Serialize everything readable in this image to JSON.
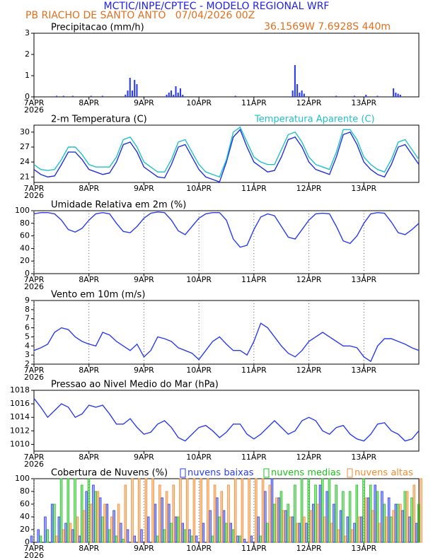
{
  "header": {
    "title": "MCTIC/INPE/CPTEC - MODELO REGIONAL WRF",
    "location": "PB RIACHO DE SANTO ANTO   07/04/2026 00Z",
    "coordinates": "36.1569W 7.6928S 440m"
  },
  "chart_data": [
    {
      "type": "bar",
      "title": "Precipitacao (mm/h)",
      "xlim": [
        0,
        168
      ],
      "x": [
        10,
        13,
        17,
        25,
        30,
        40,
        41,
        42,
        43,
        44,
        45,
        58,
        59,
        60,
        61,
        62,
        63,
        64,
        65,
        88,
        113,
        114,
        115,
        116,
        117,
        118,
        132,
        140,
        145,
        150,
        157,
        158,
        159,
        160
      ],
      "series": [
        {
          "color": "#2a3cf0",
          "values": [
            0.05,
            0.05,
            0.05,
            0.05,
            0.05,
            0.1,
            0.3,
            0.9,
            0.3,
            0.8,
            0.6,
            0.1,
            0.2,
            0.3,
            0.1,
            0.5,
            0.2,
            0.4,
            0.1,
            0.05,
            0.3,
            1.5,
            0.6,
            0.2,
            0.3,
            0.15,
            0.05,
            0.05,
            0.1,
            0.05,
            0.4,
            0.2,
            0.15,
            0.1
          ]
        }
      ],
      "ylim": [
        0,
        3
      ],
      "yticks": [
        0,
        1,
        2,
        3
      ],
      "xticks": [
        {
          "value": 0,
          "label": "7APR"
        },
        {
          "value": 24,
          "label": "8APR"
        },
        {
          "value": 48,
          "label": "9APR"
        },
        {
          "value": 72,
          "label": "10APR"
        },
        {
          "value": 96,
          "label": "11APR"
        },
        {
          "value": 120,
          "label": "12APR"
        },
        {
          "value": 144,
          "label": "13APR"
        }
      ],
      "year_label": "2026",
      "grid": false
    },
    {
      "type": "line",
      "title": "2-m Temperatura (C)",
      "xlim": [
        0,
        168
      ],
      "x": [
        0,
        3,
        6,
        9,
        12,
        15,
        18,
        21,
        24,
        27,
        30,
        33,
        36,
        39,
        42,
        45,
        48,
        51,
        54,
        57,
        60,
        63,
        66,
        69,
        72,
        75,
        78,
        81,
        84,
        87,
        90,
        93,
        96,
        99,
        102,
        105,
        108,
        111,
        114,
        117,
        120,
        123,
        126,
        129,
        132,
        135,
        138,
        141,
        144,
        147,
        150,
        153,
        156,
        159,
        162,
        165,
        168
      ],
      "series": [
        {
          "color": "#2030e0",
          "values": [
            22.5,
            21.5,
            21,
            21.2,
            23.5,
            26,
            26,
            24.5,
            22.5,
            22,
            21.5,
            21.8,
            24,
            27.5,
            28,
            26,
            23,
            22,
            21,
            20.8,
            23.5,
            27,
            27.5,
            25,
            22.5,
            21,
            20.5,
            20,
            24,
            29,
            30.5,
            27,
            24,
            23,
            22,
            22.3,
            25,
            28.5,
            29,
            27,
            24,
            22.5,
            22,
            21.5,
            25,
            29.5,
            30,
            27.5,
            24,
            22.5,
            21.5,
            21,
            23.5,
            27,
            27.5,
            25.5,
            23.5
          ]
        },
        {
          "name": "Temperatura Aparente (C)",
          "color": "#20c0c8",
          "values": [
            23.5,
            22.5,
            22.3,
            22.5,
            24.5,
            27,
            27,
            25.5,
            23.5,
            23,
            23,
            23,
            25,
            28.5,
            29,
            27,
            24,
            23,
            22,
            22,
            24.5,
            28,
            28.5,
            26,
            23.5,
            22,
            21.5,
            21,
            24.5,
            30,
            31,
            28,
            25,
            24,
            23.5,
            23.5,
            26.5,
            29.5,
            30,
            28,
            25,
            23.5,
            23,
            22.5,
            26,
            30.5,
            30.5,
            28.5,
            25,
            23.5,
            22.5,
            22,
            24.5,
            28,
            28.5,
            26.5,
            24.5
          ]
        }
      ],
      "ylim": [
        19.9,
        31.4
      ],
      "yticks": [
        21,
        24,
        27,
        30
      ],
      "xticks": [
        {
          "value": 0,
          "label": "7APR"
        },
        {
          "value": 24,
          "label": "8APR"
        },
        {
          "value": 48,
          "label": "9APR"
        },
        {
          "value": 72,
          "label": "10APR"
        },
        {
          "value": 96,
          "label": "11APR"
        },
        {
          "value": 120,
          "label": "12APR"
        },
        {
          "value": 144,
          "label": "13APR"
        }
      ],
      "year_label": "2026",
      "grid": false
    },
    {
      "type": "line",
      "title": "Umidade Relativa em 2m (%)",
      "xlim": [
        0,
        168
      ],
      "x": [
        0,
        3,
        6,
        9,
        12,
        15,
        18,
        21,
        24,
        27,
        30,
        33,
        36,
        39,
        42,
        45,
        48,
        51,
        54,
        57,
        60,
        63,
        66,
        69,
        72,
        75,
        78,
        81,
        84,
        87,
        90,
        93,
        96,
        99,
        102,
        105,
        108,
        111,
        114,
        117,
        120,
        123,
        126,
        129,
        132,
        135,
        138,
        141,
        144,
        147,
        150,
        153,
        156,
        159,
        162,
        165,
        168
      ],
      "series": [
        {
          "color": "#2a3cf0",
          "values": [
            95,
            97,
            97,
            95,
            85,
            70,
            66,
            72,
            85,
            95,
            97,
            95,
            80,
            67,
            65,
            75,
            88,
            96,
            98,
            97,
            85,
            68,
            62,
            75,
            88,
            95,
            97,
            97,
            85,
            55,
            42,
            45,
            70,
            90,
            95,
            92,
            75,
            58,
            55,
            70,
            85,
            95,
            96,
            95,
            75,
            52,
            48,
            60,
            80,
            95,
            97,
            96,
            82,
            65,
            62,
            70,
            80
          ]
        }
      ],
      "ylim": [
        0,
        100
      ],
      "yticks": [
        0,
        20,
        40,
        60,
        80,
        100
      ],
      "xticks": [
        {
          "value": 0,
          "label": "7APR"
        },
        {
          "value": 24,
          "label": "8APR"
        },
        {
          "value": 48,
          "label": "9APR"
        },
        {
          "value": 72,
          "label": "10APR"
        },
        {
          "value": 96,
          "label": "11APR"
        },
        {
          "value": 120,
          "label": "12APR"
        },
        {
          "value": 144,
          "label": "13APR"
        }
      ],
      "year_label": "2026",
      "grid": true
    },
    {
      "type": "line",
      "title": "Vento em 10m (m/s)",
      "xlim": [
        0,
        168
      ],
      "x": [
        0,
        3,
        6,
        9,
        12,
        15,
        18,
        21,
        24,
        27,
        30,
        33,
        36,
        39,
        42,
        45,
        48,
        51,
        54,
        57,
        60,
        63,
        66,
        69,
        72,
        75,
        78,
        81,
        84,
        87,
        90,
        93,
        96,
        99,
        102,
        105,
        108,
        111,
        114,
        117,
        120,
        123,
        126,
        129,
        132,
        135,
        138,
        141,
        144,
        147,
        150,
        153,
        156,
        159,
        162,
        165,
        168
      ],
      "series": [
        {
          "color": "#2a3cf0",
          "values": [
            3.5,
            3.8,
            4.2,
            5.5,
            6,
            5.8,
            5,
            4.5,
            4.2,
            4,
            5.5,
            5.2,
            4.5,
            4,
            3.5,
            4.2,
            2.8,
            3.5,
            5,
            4.8,
            4.5,
            3.8,
            3.5,
            3.2,
            2.5,
            3.5,
            4.5,
            5,
            4.2,
            3.5,
            3.5,
            3,
            4.5,
            6.5,
            6,
            5,
            4,
            3.2,
            2.8,
            3.5,
            4.5,
            5,
            5.5,
            5,
            4.5,
            4,
            4,
            3.8,
            2.8,
            2.3,
            4,
            4.8,
            4.8,
            4.5,
            4.2,
            3.8,
            3.5
          ]
        }
      ],
      "ylim": [
        2,
        9
      ],
      "yticks": [
        2,
        3,
        4,
        5,
        6,
        7,
        8,
        9
      ],
      "xticks": [
        {
          "value": 0,
          "label": "7APR"
        },
        {
          "value": 24,
          "label": "8APR"
        },
        {
          "value": 48,
          "label": "9APR"
        },
        {
          "value": 72,
          "label": "10APR"
        },
        {
          "value": 96,
          "label": "11APR"
        },
        {
          "value": 120,
          "label": "12APR"
        },
        {
          "value": 144,
          "label": "13APR"
        }
      ],
      "year_label": "2026",
      "grid": true
    },
    {
      "type": "line",
      "title": "Pressao ao Nivel Medio do Mar (hPa)",
      "xlim": [
        0,
        168
      ],
      "x": [
        0,
        3,
        6,
        9,
        12,
        15,
        18,
        21,
        24,
        27,
        30,
        33,
        36,
        39,
        42,
        45,
        48,
        51,
        54,
        57,
        60,
        63,
        66,
        69,
        72,
        75,
        78,
        81,
        84,
        87,
        90,
        93,
        96,
        99,
        102,
        105,
        108,
        111,
        114,
        117,
        120,
        123,
        126,
        129,
        132,
        135,
        138,
        141,
        144,
        147,
        150,
        153,
        156,
        159,
        162,
        165,
        168
      ],
      "series": [
        {
          "color": "#2a3cf0",
          "values": [
            1016.8,
            1015.5,
            1014,
            1015,
            1016,
            1015.5,
            1014,
            1014.5,
            1015.8,
            1015.5,
            1015.8,
            1014.5,
            1013,
            1013,
            1013.8,
            1012.5,
            1011.5,
            1011.8,
            1013,
            1013.5,
            1012.5,
            1011,
            1010.5,
            1011.5,
            1012.5,
            1012.8,
            1012,
            1011,
            1011.8,
            1013,
            1013,
            1011.5,
            1010.8,
            1011.5,
            1012.5,
            1013.5,
            1012.5,
            1011.5,
            1012,
            1013.5,
            1014,
            1013.5,
            1012,
            1011.5,
            1012.5,
            1012.8,
            1011.5,
            1010.8,
            1010.5,
            1011.5,
            1013,
            1013.2,
            1012,
            1011.5,
            1010.5,
            1010.8,
            1012
          ]
        }
      ],
      "ylim": [
        1009,
        1018
      ],
      "yticks": [
        1010,
        1012,
        1014,
        1016,
        1018
      ],
      "xticks": [
        {
          "value": 0,
          "label": "7APR"
        },
        {
          "value": 24,
          "label": "8APR"
        },
        {
          "value": 48,
          "label": "9APR"
        },
        {
          "value": 72,
          "label": "10APR"
        },
        {
          "value": 96,
          "label": "11APR"
        },
        {
          "value": 120,
          "label": "12APR"
        },
        {
          "value": 144,
          "label": "13APR"
        }
      ],
      "year_label": "2026",
      "grid": false
    },
    {
      "type": "bar",
      "title": "Cobertura de Nuvens (%)",
      "xlim": [
        0,
        168
      ],
      "x": [
        0,
        3,
        6,
        9,
        12,
        15,
        18,
        21,
        24,
        27,
        30,
        33,
        36,
        39,
        42,
        45,
        48,
        51,
        54,
        57,
        60,
        63,
        66,
        69,
        72,
        75,
        78,
        81,
        84,
        87,
        90,
        93,
        96,
        99,
        102,
        105,
        108,
        111,
        114,
        117,
        120,
        123,
        126,
        129,
        132,
        135,
        138,
        141,
        144,
        147,
        150,
        153,
        156,
        159,
        162,
        165,
        168
      ],
      "series": [
        {
          "name": "nuvens baixas",
          "color": "#2a3cf0",
          "values": [
            10,
            20,
            40,
            60,
            40,
            30,
            20,
            10,
            80,
            90,
            70,
            60,
            50,
            30,
            20,
            10,
            20,
            40,
            60,
            70,
            60,
            40,
            30,
            20,
            10,
            30,
            50,
            70,
            50,
            30,
            10,
            5,
            10,
            40,
            80,
            100,
            70,
            50,
            40,
            30,
            30,
            60,
            90,
            80,
            60,
            50,
            40,
            30,
            40,
            70,
            90,
            80,
            70,
            60,
            50,
            40,
            30
          ]
        },
        {
          "name": "nuvens medias",
          "color": "#20c020",
          "values": [
            0,
            10,
            20,
            60,
            100,
            100,
            100,
            90,
            100,
            80,
            40,
            20,
            10,
            5,
            0,
            0,
            0,
            0,
            10,
            20,
            30,
            40,
            20,
            10,
            0,
            0,
            10,
            40,
            30,
            20,
            10,
            0,
            0,
            10,
            30,
            60,
            80,
            60,
            90,
            100,
            100,
            90,
            100,
            100,
            90,
            80,
            80,
            90,
            100,
            90,
            80,
            60,
            40,
            60,
            80,
            70,
            60
          ]
        },
        {
          "name": "nuvens altas",
          "color": "#f08c30",
          "values": [
            0,
            0,
            0,
            10,
            20,
            30,
            40,
            50,
            60,
            80,
            60,
            40,
            60,
            90,
            100,
            100,
            100,
            100,
            90,
            80,
            90,
            100,
            100,
            100,
            100,
            100,
            90,
            80,
            90,
            100,
            100,
            100,
            100,
            100,
            90,
            70,
            50,
            40,
            30,
            40,
            50,
            60,
            40,
            30,
            20,
            10,
            20,
            40,
            70,
            50,
            30,
            40,
            50,
            60,
            80,
            90,
            100
          ]
        }
      ],
      "ylim": [
        0,
        100
      ],
      "yticks": [
        0,
        20,
        40,
        60,
        80,
        100
      ],
      "xticks": [
        {
          "value": 0,
          "label": "7APR"
        },
        {
          "value": 24,
          "label": "8APR"
        },
        {
          "value": 48,
          "label": "9APR"
        },
        {
          "value": 72,
          "label": "10APR"
        },
        {
          "value": 96,
          "label": "11APR"
        },
        {
          "value": 120,
          "label": "12APR"
        },
        {
          "value": 144,
          "label": "13APR"
        }
      ],
      "year_label": "2026",
      "grid": true
    }
  ]
}
